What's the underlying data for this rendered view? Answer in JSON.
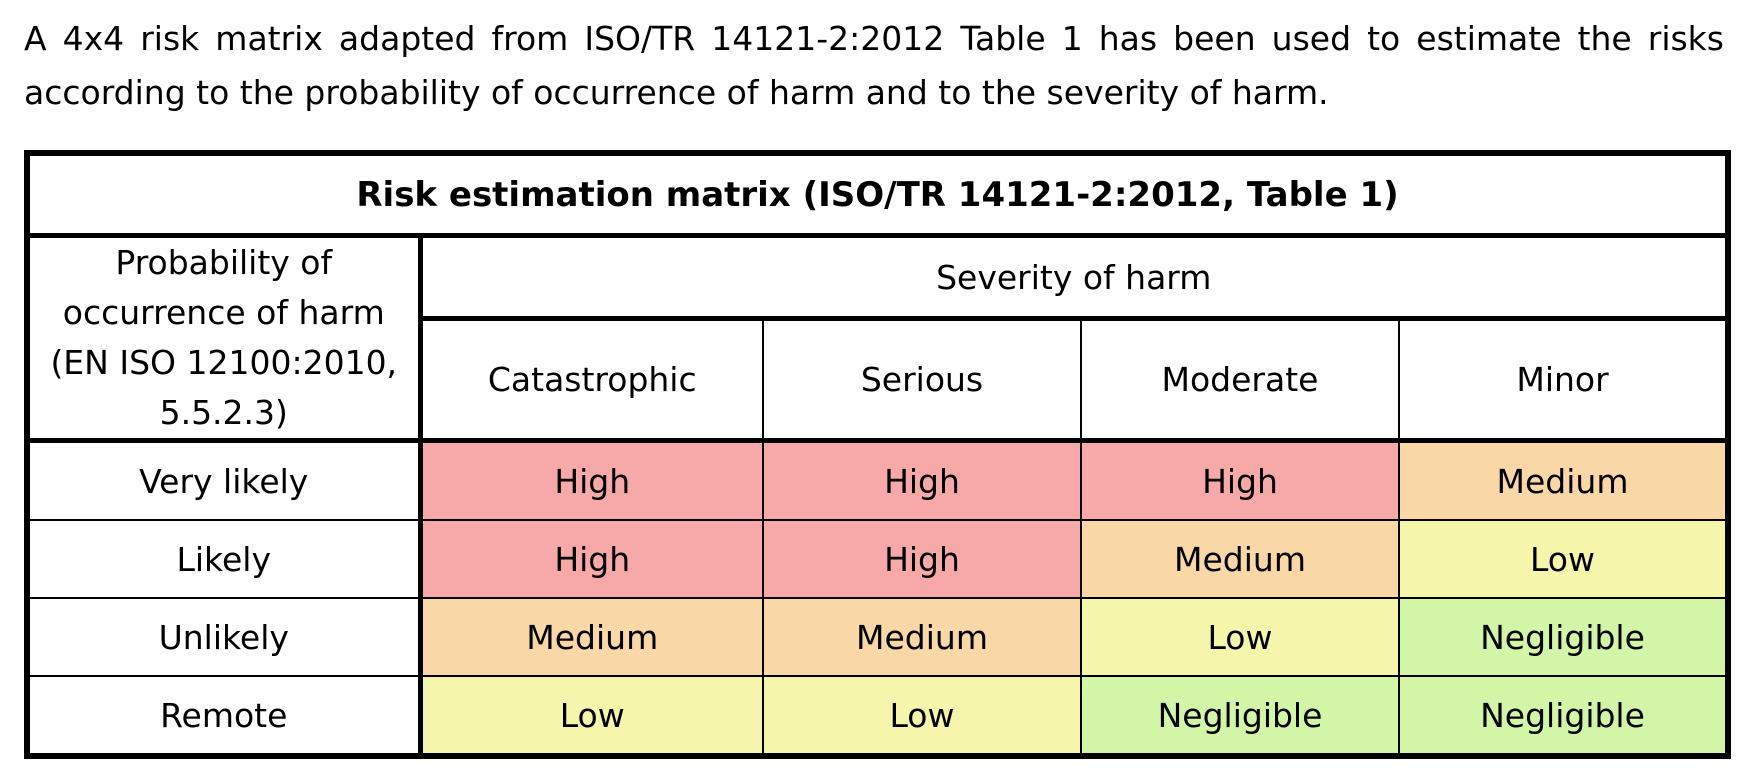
{
  "intro": {
    "text": "A 4x4 risk matrix adapted from ISO/TR 14121-2:2012 Table 1 has been used to estimate the risks according to the probability of occurrence of harm and to the severity of harm."
  },
  "matrix": {
    "title": "Risk estimation matrix (ISO/TR 14121-2:2012, Table 1)",
    "probability_header": "Probability of occurrence of harm (EN ISO 12100:2010, 5.5.2.3)",
    "severity_header": "Severity of harm",
    "severity_levels": [
      "Catastrophic",
      "Serious",
      "Moderate",
      "Minor"
    ],
    "rows": [
      {
        "label": "Very likely",
        "cells": [
          "High",
          "High",
          "High",
          "Medium"
        ]
      },
      {
        "label": "Likely",
        "cells": [
          "High",
          "High",
          "Medium",
          "Low"
        ]
      },
      {
        "label": "Unlikely",
        "cells": [
          "Medium",
          "Medium",
          "Low",
          "Negligible"
        ]
      },
      {
        "label": "Remote",
        "cells": [
          "Low",
          "Low",
          "Negligible",
          "Negligible"
        ]
      }
    ],
    "colors": {
      "High": "#f7a8a8",
      "Medium": "#f9d7a7",
      "Low": "#f5f5ac",
      "Negligible": "#d2f5a8"
    }
  }
}
